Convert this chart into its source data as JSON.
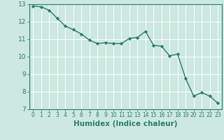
{
  "x": [
    0,
    1,
    2,
    3,
    4,
    5,
    6,
    7,
    8,
    9,
    10,
    11,
    12,
    13,
    14,
    15,
    16,
    17,
    18,
    19,
    20,
    21,
    22,
    23
  ],
  "y": [
    12.9,
    12.85,
    12.65,
    12.2,
    11.75,
    11.55,
    11.3,
    10.95,
    10.75,
    10.8,
    10.75,
    10.75,
    11.05,
    11.1,
    11.45,
    10.65,
    10.6,
    10.05,
    10.15,
    8.75,
    7.75,
    7.95,
    7.75,
    7.35
  ],
  "xlim": [
    -0.5,
    23.5
  ],
  "ylim": [
    7,
    13
  ],
  "xticks": [
    0,
    1,
    2,
    3,
    4,
    5,
    6,
    7,
    8,
    9,
    10,
    11,
    12,
    13,
    14,
    15,
    16,
    17,
    18,
    19,
    20,
    21,
    22,
    23
  ],
  "yticks": [
    7,
    8,
    9,
    10,
    11,
    12,
    13
  ],
  "xlabel": "Humidex (Indice chaleur)",
  "line_color": "#2e7d6e",
  "bg_color": "#cce8e0",
  "grid_color": "#ffffff",
  "tick_label_fontsize": 6.5,
  "xlabel_fontsize": 7.5
}
